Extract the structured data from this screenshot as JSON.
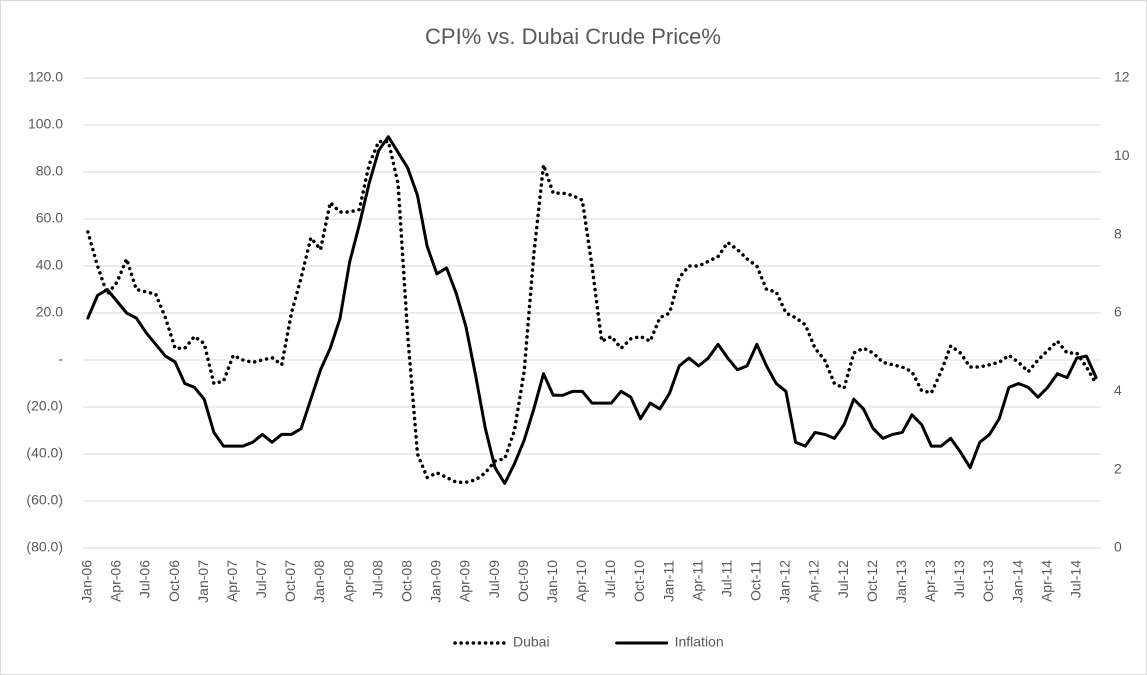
{
  "chart_data": {
    "type": "line",
    "title": "CPI% vs. Dubai Crude Price%",
    "categories": [
      "Jan-06",
      null,
      null,
      "Apr-06",
      null,
      null,
      "Jul-06",
      null,
      null,
      "Oct-06",
      null,
      null,
      "Jan-07",
      null,
      null,
      "Apr-07",
      null,
      null,
      "Jul-07",
      null,
      null,
      "Oct-07",
      null,
      null,
      "Jan-08",
      null,
      null,
      "Apr-08",
      null,
      null,
      "Jul-08",
      null,
      null,
      "Oct-08",
      null,
      null,
      "Jan-09",
      null,
      null,
      "Apr-09",
      null,
      null,
      "Jul-09",
      null,
      null,
      "Oct-09",
      null,
      null,
      "Jan-10",
      null,
      null,
      "Apr-10",
      null,
      null,
      "Jul-10",
      null,
      null,
      "Oct-10",
      null,
      null,
      "Jan-11",
      null,
      null,
      "Apr-11",
      null,
      null,
      "Jul-11",
      null,
      null,
      "Oct-11",
      null,
      null,
      "Jan-12",
      null,
      null,
      "Apr-12",
      null,
      null,
      "Jul-12",
      null,
      null,
      "Oct-12",
      null,
      null,
      "Jan-13",
      null,
      null,
      "Apr-13",
      null,
      null,
      "Jul-13",
      null,
      null,
      "Oct-13",
      null,
      null,
      "Jan-14",
      null,
      null,
      "Apr-14",
      null,
      null,
      "Jul-14",
      null,
      null
    ],
    "series": [
      {
        "name": "Dubai",
        "color": "#000000",
        "style": "dotted",
        "values": [
          54.5,
          40,
          28,
          33,
          43,
          30,
          29,
          28,
          18,
          5,
          5,
          10,
          7,
          -10,
          -9,
          2,
          0,
          -1,
          0,
          1,
          -2,
          20,
          35,
          52,
          47,
          67,
          63,
          63,
          64,
          83,
          93,
          93,
          75,
          10,
          -40,
          -50,
          -48,
          -50,
          -52,
          -52,
          -51,
          -48,
          -43,
          -42,
          -30,
          -5,
          45,
          83,
          71,
          71,
          70,
          68,
          40,
          8,
          10,
          5,
          9,
          10,
          8,
          18,
          20,
          35,
          40,
          40,
          42,
          44,
          50,
          47,
          43,
          40,
          30,
          29,
          20,
          18,
          15,
          5,
          0,
          -10,
          -12,
          3,
          5,
          3,
          -1,
          -2,
          -3,
          -5,
          -13,
          -14,
          -5,
          6,
          3,
          -3,
          -3,
          -2,
          -1,
          2,
          -1,
          -5,
          0,
          4,
          8,
          3,
          3,
          -3,
          -10
        ]
      },
      {
        "name": "Inflation",
        "color": "#000000",
        "style": "solid",
        "axis": "y2",
        "values": [
          5.87,
          6.45,
          6.6,
          6.3,
          6.0,
          5.87,
          5.5,
          5.2,
          4.9,
          4.75,
          4.2,
          4.1,
          3.8,
          2.95,
          2.6,
          2.6,
          2.6,
          2.7,
          2.9,
          2.7,
          2.9,
          2.9,
          3.05,
          3.8,
          4.55,
          5.1,
          5.85,
          7.3,
          8.25,
          9.3,
          10.15,
          10.5,
          10.1,
          9.7,
          9.0,
          7.7,
          7.0,
          7.15,
          6.5,
          5.65,
          4.4,
          3.05,
          2.05,
          1.65,
          2.15,
          2.75,
          3.55,
          4.45,
          3.9,
          3.9,
          4.0,
          4.0,
          3.7,
          3.7,
          3.7,
          4.0,
          3.85,
          3.3,
          3.7,
          3.55,
          3.95,
          4.65,
          4.85,
          4.65,
          4.85,
          5.2,
          4.85,
          4.55,
          4.65,
          5.2,
          4.65,
          4.2,
          4.0,
          2.7,
          2.6,
          2.95,
          2.9,
          2.8,
          3.15,
          3.8,
          3.55,
          3.05,
          2.8,
          2.9,
          2.95,
          3.4,
          3.15,
          2.6,
          2.6,
          2.8,
          2.45,
          2.05,
          2.7,
          2.9,
          3.3,
          4.1,
          4.2,
          4.1,
          3.85,
          4.1,
          4.45,
          4.35,
          4.85,
          4.9,
          4.35
        ]
      }
    ],
    "ylim": [
      -80,
      120
    ],
    "yticks": [
      {
        "value": -80,
        "label": "(80.0)"
      },
      {
        "value": -60,
        "label": "(60.0)"
      },
      {
        "value": -40,
        "label": "(40.0)"
      },
      {
        "value": -20,
        "label": "(20.0)"
      },
      {
        "value": 0,
        "label": "-"
      },
      {
        "value": 20,
        "label": "20.0"
      },
      {
        "value": 40,
        "label": "40.0"
      },
      {
        "value": 60,
        "label": "60.0"
      },
      {
        "value": 80,
        "label": "80.0"
      },
      {
        "value": 100,
        "label": "100.0"
      },
      {
        "value": 120,
        "label": "120.0"
      }
    ],
    "y2lim": [
      0,
      12
    ],
    "y2ticks": [
      0,
      2,
      4,
      6,
      8,
      10,
      12
    ],
    "grid": true,
    "legend": "bottom"
  }
}
